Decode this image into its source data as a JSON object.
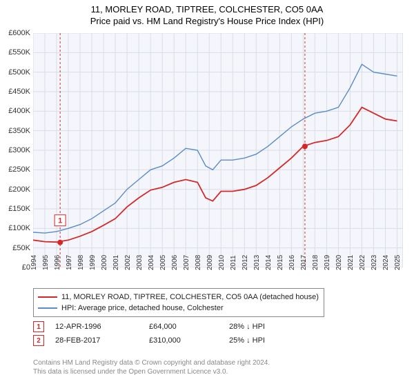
{
  "titles": {
    "main": "11, MORLEY ROAD, TIPTREE, COLCHESTER, CO5 0AA",
    "sub": "Price paid vs. HM Land Registry's House Price Index (HPI)"
  },
  "chart": {
    "type": "line",
    "background_color": "#f4f6fb",
    "grid_color": "#d9dde6",
    "plot_border_color": "#d0d0d0",
    "xlim": [
      1994,
      2025.5
    ],
    "ylim": [
      0,
      600000
    ],
    "ytick_step": 50000,
    "yticks": [
      "£0",
      "£50K",
      "£100K",
      "£150K",
      "£200K",
      "£250K",
      "£300K",
      "£350K",
      "£400K",
      "£450K",
      "£500K",
      "£550K",
      "£600K"
    ],
    "xticks": [
      "1994",
      "1995",
      "1996",
      "1997",
      "1998",
      "1999",
      "2000",
      "2001",
      "2002",
      "2003",
      "2004",
      "2005",
      "2006",
      "2007",
      "2008",
      "2009",
      "2010",
      "2011",
      "2012",
      "2013",
      "2014",
      "2015",
      "2016",
      "2017",
      "2018",
      "2019",
      "2020",
      "2021",
      "2022",
      "2023",
      "2024",
      "2025"
    ],
    "series": [
      {
        "name": "hpi",
        "color": "#5a8bc9",
        "width": 1.4,
        "x": [
          1994,
          1995,
          1996,
          1997,
          1998,
          1999,
          2000,
          2001,
          2002,
          2003,
          2004,
          2005,
          2006,
          2007,
          2008,
          2008.7,
          2009.3,
          2010,
          2011,
          2012,
          2013,
          2014,
          2015,
          2016,
          2017,
          2018,
          2019,
          2020,
          2021,
          2022,
          2023,
          2024,
          2025
        ],
        "y": [
          90000,
          88000,
          92000,
          100000,
          110000,
          125000,
          145000,
          165000,
          200000,
          225000,
          250000,
          260000,
          280000,
          305000,
          300000,
          260000,
          250000,
          275000,
          275000,
          280000,
          290000,
          310000,
          335000,
          360000,
          380000,
          395000,
          400000,
          410000,
          460000,
          520000,
          500000,
          495000,
          490000
        ]
      },
      {
        "name": "property",
        "color": "#d62728",
        "width": 1.8,
        "x": [
          1994,
          1995,
          1996,
          1997,
          1998,
          1999,
          2000,
          2001,
          2002,
          2003,
          2004,
          2005,
          2006,
          2007,
          2008,
          2008.7,
          2009.3,
          2010,
          2011,
          2012,
          2013,
          2014,
          2015,
          2016,
          2017,
          2018,
          2019,
          2020,
          2021,
          2022,
          2023,
          2024,
          2025
        ],
        "y": [
          70000,
          66000,
          65000,
          70000,
          80000,
          92000,
          108000,
          125000,
          155000,
          178000,
          198000,
          205000,
          218000,
          225000,
          218000,
          178000,
          170000,
          195000,
          195000,
          200000,
          210000,
          230000,
          255000,
          280000,
          310000,
          320000,
          325000,
          335000,
          365000,
          410000,
          395000,
          380000,
          375000
        ]
      }
    ],
    "markers": [
      {
        "id": "1",
        "x": 1996.3,
        "y": 64000,
        "color": "#d62728",
        "label_offset": -40
      },
      {
        "id": "2",
        "x": 2017.15,
        "y": 310000,
        "color": "#d62728",
        "label_offset": -270
      }
    ]
  },
  "legend": {
    "items": [
      {
        "color": "#d62728",
        "label": "11, MORLEY ROAD, TIPTREE, COLCHESTER, CO5 0AA (detached house)"
      },
      {
        "color": "#5a8bc9",
        "label": "HPI: Average price, detached house, Colchester"
      }
    ]
  },
  "sales": [
    {
      "id": "1",
      "color": "#d62728",
      "date": "12-APR-1996",
      "price": "£64,000",
      "pct": "28% ↓ HPI"
    },
    {
      "id": "2",
      "color": "#d62728",
      "date": "28-FEB-2017",
      "price": "£310,000",
      "pct": "25% ↓ HPI"
    }
  ],
  "footer": {
    "line1": "Contains HM Land Registry data © Crown copyright and database right 2024.",
    "line2": "This data is licensed under the Open Government Licence v3.0."
  }
}
